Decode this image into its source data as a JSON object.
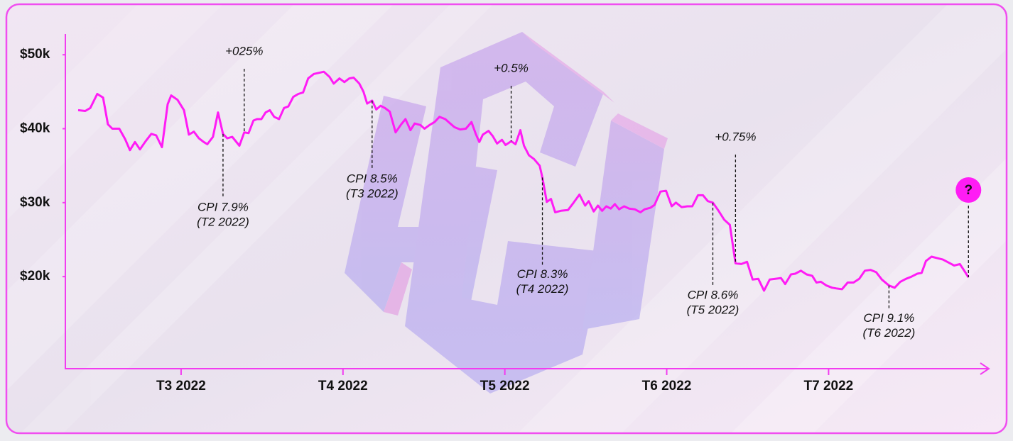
{
  "chart_data": {
    "type": "line",
    "color": "#ff1cf5",
    "xlim": [
      2.285,
      7.99
    ],
    "ylim": [
      7.55,
      52.8
    ],
    "xticks": [
      {
        "value": 3,
        "label": "T3 2022"
      },
      {
        "value": 4,
        "label": "T4 2022"
      },
      {
        "value": 5,
        "label": "T5 2022"
      },
      {
        "value": 6,
        "label": "T6 2022"
      },
      {
        "value": 7,
        "label": "T7 2022"
      }
    ],
    "yticks": [
      {
        "value": 20,
        "label": "$20k"
      },
      {
        "value": 30,
        "label": "$30k"
      },
      {
        "value": 40,
        "label": "$40k"
      },
      {
        "value": 50,
        "label": "$50k"
      }
    ],
    "x": [
      2.364,
      2.408,
      2.439,
      2.482,
      2.518,
      2.548,
      2.575,
      2.618,
      2.654,
      2.684,
      2.715,
      2.746,
      2.781,
      2.816,
      2.846,
      2.882,
      2.917,
      2.939,
      2.978,
      3.018,
      3.048,
      3.079,
      3.11,
      3.14,
      3.162,
      3.197,
      3.228,
      3.259,
      3.285,
      3.316,
      3.36,
      3.39,
      3.417,
      3.447,
      3.469,
      3.496,
      3.522,
      3.548,
      3.575,
      3.605,
      3.636,
      3.662,
      3.693,
      3.724,
      3.754,
      3.785,
      3.82,
      3.882,
      3.917,
      3.943,
      3.978,
      4.009,
      4.039,
      4.066,
      4.101,
      4.127,
      4.149,
      4.18,
      4.206,
      4.232,
      4.259,
      4.289,
      4.325,
      4.36,
      4.386,
      4.417,
      4.443,
      4.478,
      4.504,
      4.535,
      4.566,
      4.596,
      4.632,
      4.658,
      4.689,
      4.724,
      4.759,
      4.794,
      4.82,
      4.842,
      4.864,
      4.899,
      4.925,
      4.952,
      4.982,
      5.004,
      5.039,
      5.066,
      5.096,
      5.118,
      5.149,
      5.18,
      5.215,
      5.232,
      5.259,
      5.285,
      5.311,
      5.346,
      5.39,
      5.425,
      5.461,
      5.496,
      5.518,
      5.549,
      5.575,
      5.601,
      5.627,
      5.654,
      5.68,
      5.706,
      5.737,
      5.768,
      5.803,
      5.838,
      5.864,
      5.899,
      5.925,
      5.961,
      5.996,
      6.031,
      6.057,
      6.092,
      6.127,
      6.158,
      6.193,
      6.224,
      6.254,
      6.285,
      6.32,
      6.355,
      6.39,
      6.425,
      6.461,
      6.496,
      6.531,
      6.566,
      6.601,
      6.636,
      6.671,
      6.706,
      6.732,
      6.768,
      6.794,
      6.829,
      6.864,
      6.899,
      6.925,
      6.952,
      6.987,
      7.022,
      7.048,
      7.083,
      7.118,
      7.154,
      7.189,
      7.224,
      7.259,
      7.294,
      7.329,
      7.373,
      7.408,
      7.443,
      7.478,
      7.513,
      7.548,
      7.575,
      7.601,
      7.636,
      7.671,
      7.706,
      7.741,
      7.776,
      7.811,
      7.838,
      7.864
    ],
    "values": [
      42.5,
      42.4,
      42.8,
      44.7,
      44.2,
      40.6,
      40.0,
      40.0,
      38.6,
      37.1,
      38.2,
      37.2,
      38.3,
      39.3,
      39.1,
      37.5,
      43.3,
      44.5,
      43.9,
      42.5,
      39.2,
      39.6,
      38.7,
      38.2,
      37.9,
      38.9,
      42.2,
      39.3,
      38.7,
      38.9,
      37.7,
      39.5,
      39.4,
      41.1,
      41.3,
      41.3,
      42.2,
      42.5,
      41.6,
      41.3,
      42.8,
      43.0,
      44.3,
      44.7,
      44.9,
      46.8,
      47.4,
      47.7,
      47.0,
      46.1,
      46.8,
      46.3,
      46.8,
      46.9,
      46.1,
      45.0,
      43.4,
      43.8,
      42.6,
      43.1,
      42.8,
      42.3,
      39.5,
      40.6,
      41.3,
      39.8,
      40.7,
      40.5,
      40.0,
      40.5,
      40.9,
      41.6,
      41.3,
      40.8,
      40.2,
      39.9,
      40.0,
      40.9,
      39.3,
      38.2,
      39.2,
      39.7,
      39.0,
      38.0,
      38.5,
      37.8,
      38.3,
      37.9,
      39.8,
      37.7,
      36.4,
      35.9,
      35.0,
      33.4,
      30.1,
      30.5,
      28.7,
      28.9,
      29.0,
      30.0,
      31.1,
      29.6,
      30.2,
      28.8,
      29.6,
      28.9,
      29.5,
      29.2,
      29.8,
      29.1,
      29.5,
      29.2,
      29.1,
      28.7,
      29.1,
      29.3,
      29.7,
      31.5,
      31.6,
      29.5,
      30.0,
      29.4,
      29.5,
      29.5,
      31.0,
      31.0,
      30.2,
      30.0,
      28.9,
      27.7,
      27.0,
      21.8,
      21.7,
      22.0,
      19.6,
      19.7,
      18.1,
      19.6,
      19.7,
      19.8,
      19.0,
      20.3,
      20.4,
      20.8,
      20.3,
      20.1,
      19.2,
      19.3,
      18.8,
      18.5,
      18.4,
      18.3,
      19.2,
      19.2,
      19.7,
      20.8,
      20.9,
      20.6,
      19.6,
      18.8,
      18.5,
      19.3,
      19.7,
      20.0,
      20.4,
      20.5,
      22.1,
      22.7,
      22.5,
      22.3,
      21.9,
      21.5,
      21.7,
      20.8,
      19.9
    ],
    "annotations": [
      {
        "text": "CPI 7.9%",
        "subtext": "(T2 2022)",
        "x": 3.259,
        "position": "below"
      },
      {
        "text": "+025%",
        "x": 3.39,
        "position": "above"
      },
      {
        "text": "CPI 8.5%",
        "subtext": "(T3 2022)",
        "x": 4.18,
        "position": "below"
      },
      {
        "text": "+0.5%",
        "x": 5.039,
        "position": "above"
      },
      {
        "text": "CPI 8.3%",
        "subtext": "(T4 2022)",
        "x": 5.232,
        "position": "below"
      },
      {
        "text": "+0.75%",
        "x": 6.425,
        "position": "above"
      },
      {
        "text": "CPI 8.6%",
        "subtext": "(T5 2022)",
        "x": 6.285,
        "position": "below"
      },
      {
        "text": "CPI 9.1%",
        "subtext": "(T6 2022)",
        "x": 7.373,
        "position": "below"
      },
      {
        "text": "?",
        "x": 7.864,
        "position": "marker"
      }
    ]
  }
}
